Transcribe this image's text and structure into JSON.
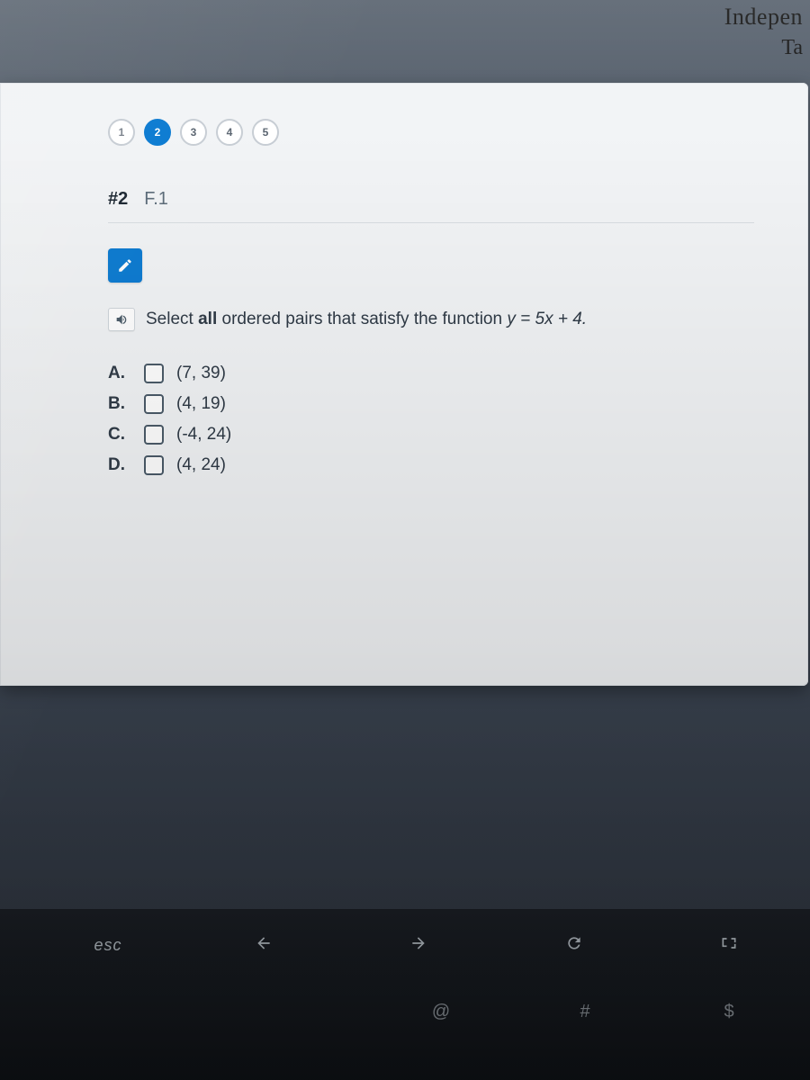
{
  "header_fragment": {
    "line1": "Indepen",
    "line2": "Ta"
  },
  "pager": {
    "steps": [
      {
        "n": "1",
        "state": "done"
      },
      {
        "n": "2",
        "state": "active"
      },
      {
        "n": "3",
        "state": ""
      },
      {
        "n": "4",
        "state": ""
      },
      {
        "n": "5",
        "state": ""
      }
    ]
  },
  "question": {
    "number": "#2",
    "standard": "F.1",
    "prompt_pre": "Select ",
    "prompt_bold": "all",
    "prompt_mid": " ordered pairs that satisfy the function ",
    "prompt_eq": "y = 5x + 4.",
    "choices": [
      {
        "letter": "A.",
        "value": "(7, 39)"
      },
      {
        "letter": "B.",
        "value": "(4, 19)"
      },
      {
        "letter": "C.",
        "value": "(-4, 24)"
      },
      {
        "letter": "D.",
        "value": "(4, 24)"
      }
    ]
  },
  "keyboard": {
    "esc": "esc",
    "row2": {
      "at": "@",
      "hash": "#",
      "dollar": "$"
    }
  },
  "colors": {
    "panel_bg": "#f2f4f6",
    "accent": "#0a7ad1",
    "text": "#2f3a46",
    "border": "#c7cdd4"
  }
}
